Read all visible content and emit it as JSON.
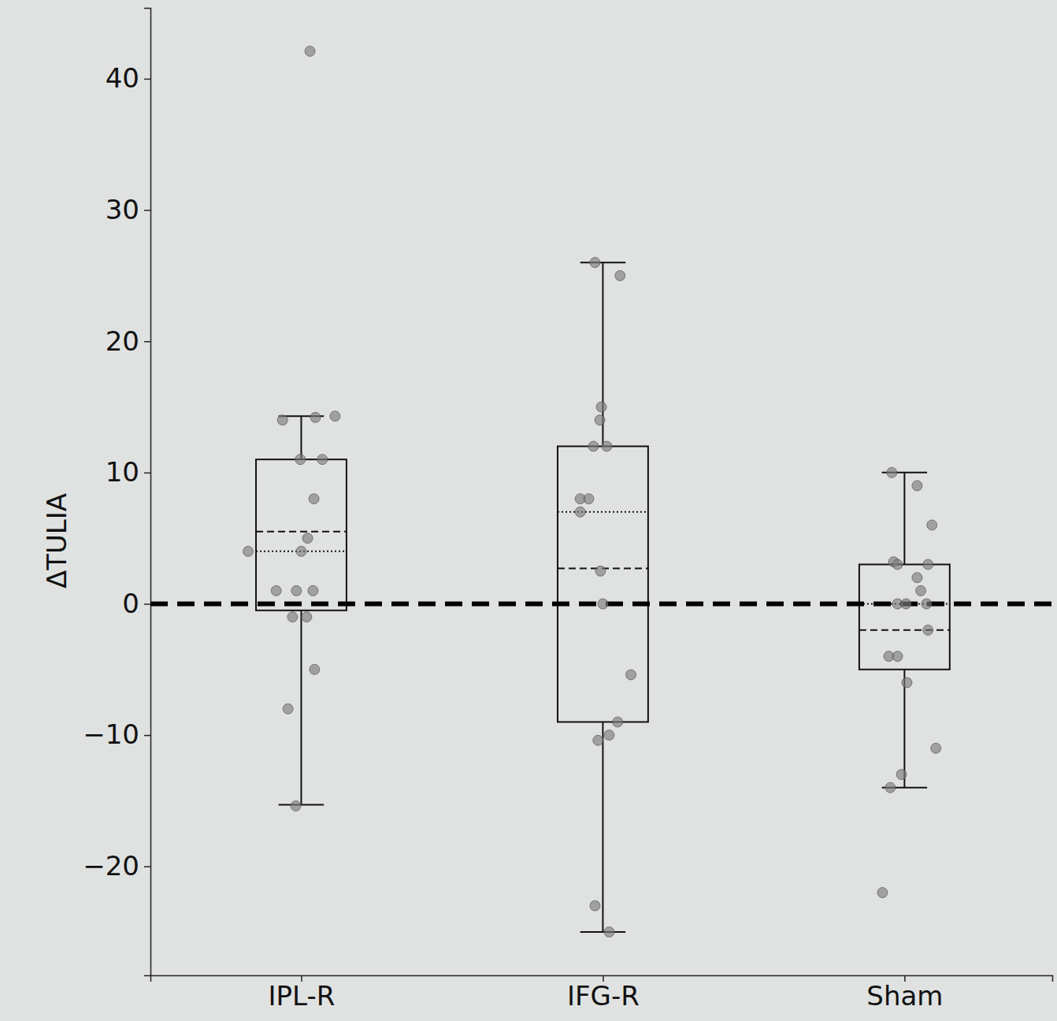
{
  "chart_data": {
    "type": "box",
    "ylabel": "ΔTULIA",
    "categories": [
      "IPL-R",
      "IFG-R",
      "Sham"
    ],
    "xlim": [
      -0.5,
      2.49
    ],
    "ylim": [
      -28.3,
      45.4
    ],
    "yticks": [
      {
        "value": -20,
        "label": "−20"
      },
      {
        "value": -10,
        "label": "−10"
      },
      0,
      10,
      20,
      30,
      40
    ],
    "hline": 0,
    "boxes": [
      {
        "q1": -0.5,
        "q3": 11,
        "median": 4,
        "mean": 5.5,
        "whislo": -15.3,
        "whishi": 14.3
      },
      {
        "q1": -9,
        "q3": 12,
        "median": 7,
        "mean": 2.7,
        "whislo": -25,
        "whishi": 26
      },
      {
        "q1": -5,
        "q3": 3,
        "median": 0,
        "mean": -2,
        "whislo": -14,
        "whishi": 10
      }
    ],
    "points": [
      {
        "x": [
          0.029,
          -0.062,
          0.047,
          0.112,
          -0.003,
          0.07,
          0.042,
          0.021,
          -0.176,
          0,
          -0.083,
          -0.016,
          0.039,
          -0.029,
          0.018,
          0.044,
          -0.044,
          -0.018
        ],
        "values": [
          42.1,
          14.0,
          14.2,
          14.3,
          11,
          11,
          8,
          5,
          4,
          4,
          1,
          1,
          1,
          -1,
          -1,
          -5,
          -8,
          -15.4
        ]
      },
      {
        "x": [
          0.974,
          1.057,
          0.995,
          0.99,
          0.969,
          1.013,
          0.925,
          0.953,
          0.925,
          0.992,
          1.0,
          1.093,
          1.049,
          0.984,
          1.021,
          0.974,
          1.021
        ],
        "values": [
          26,
          25,
          15,
          14,
          12,
          12,
          8,
          8,
          7,
          2.5,
          0,
          -5.4,
          -9,
          -10.4,
          -10,
          -23,
          -25
        ]
      },
      {
        "x": [
          1.958,
          2.042,
          2.091,
          1.964,
          1.977,
          2.078,
          2.042,
          2.054,
          1.977,
          2.005,
          2.073,
          2.078,
          1.948,
          1.977,
          2.008,
          2.104,
          1.99,
          1.953,
          1.927
        ],
        "values": [
          10,
          9,
          6,
          3.2,
          3,
          3,
          2,
          1,
          0,
          0,
          0,
          -2,
          -4,
          -4,
          -6,
          -11,
          -13,
          -14,
          -22
        ]
      }
    ]
  }
}
